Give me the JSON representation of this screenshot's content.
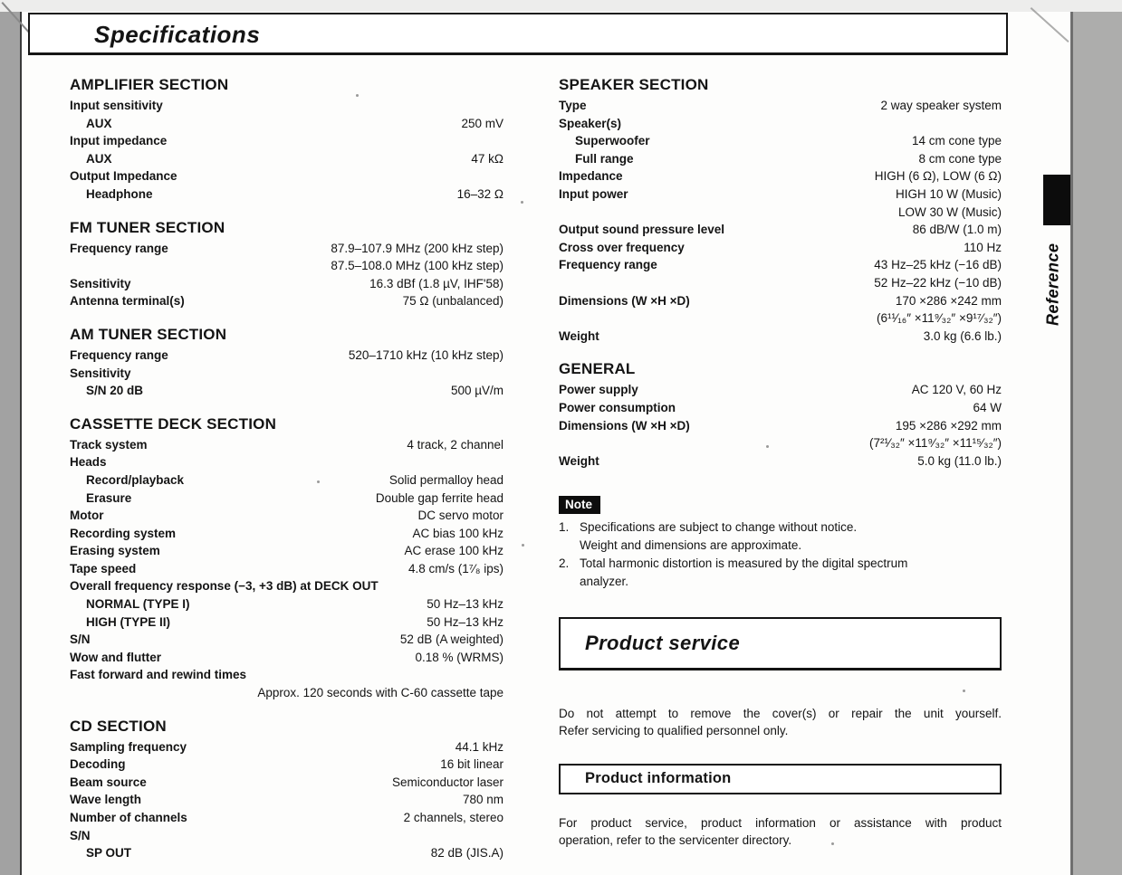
{
  "header": {
    "title": "Specifications"
  },
  "side_tab": {
    "label": "Reference"
  },
  "columns": {
    "left": [
      {
        "heading": "AMPLIFIER SECTION",
        "rows": [
          {
            "label": "Input sensitivity",
            "value": "",
            "indent": 0
          },
          {
            "label": "AUX",
            "value": "250 mV",
            "indent": 1
          },
          {
            "label": "Input impedance",
            "value": "",
            "indent": 0
          },
          {
            "label": "AUX",
            "value": "47 kΩ",
            "indent": 1
          },
          {
            "label": "Output Impedance",
            "value": "",
            "indent": 0
          },
          {
            "label": "Headphone",
            "value": "16–32 Ω",
            "indent": 1
          }
        ]
      },
      {
        "heading": "FM TUNER SECTION",
        "rows": [
          {
            "label": "Frequency range",
            "value": "87.9–107.9 MHz (200 kHz step)",
            "indent": 0
          },
          {
            "label": "",
            "value": "87.5–108.0 MHz (100 kHz step)",
            "indent": 0
          },
          {
            "label": "Sensitivity",
            "value": "16.3 dBf (1.8 µV, IHF'58)",
            "indent": 0
          },
          {
            "label": "Antenna terminal(s)",
            "value": "75 Ω (unbalanced)",
            "indent": 0
          }
        ]
      },
      {
        "heading": "AM TUNER SECTION",
        "rows": [
          {
            "label": "Frequency range",
            "value": "520–1710 kHz (10 kHz step)",
            "indent": 0
          },
          {
            "label": "Sensitivity",
            "value": "",
            "indent": 0
          },
          {
            "label": "S/N 20 dB",
            "value": "500 µV/m",
            "indent": 1
          }
        ]
      },
      {
        "heading": "CASSETTE DECK SECTION",
        "rows": [
          {
            "label": "Track system",
            "value": "4 track, 2 channel",
            "indent": 0
          },
          {
            "label": "Heads",
            "value": "",
            "indent": 0
          },
          {
            "label": "Record/playback",
            "value": "Solid permalloy head",
            "indent": 1
          },
          {
            "label": "Erasure",
            "value": "Double gap ferrite head",
            "indent": 1
          },
          {
            "label": "Motor",
            "value": "DC servo motor",
            "indent": 0
          },
          {
            "label": "Recording system",
            "value": "AC bias 100 kHz",
            "indent": 0
          },
          {
            "label": "Erasing system",
            "value": "AC erase 100 kHz",
            "indent": 0
          },
          {
            "label": "Tape speed",
            "value": "4.8 cm/s (1⁷⁄₈ ips)",
            "indent": 0
          },
          {
            "label": "Overall frequency response (−3, +3 dB) at DECK OUT",
            "value": "",
            "indent": 0
          },
          {
            "label": "NORMAL (TYPE I)",
            "value": "50 Hz–13 kHz",
            "indent": 1
          },
          {
            "label": "HIGH (TYPE II)",
            "value": "50 Hz–13 kHz",
            "indent": 1
          },
          {
            "label": "S/N",
            "value": "52 dB (A weighted)",
            "indent": 0
          },
          {
            "label": "Wow and flutter",
            "value": "0.18 % (WRMS)",
            "indent": 0
          },
          {
            "label": "Fast forward and rewind times",
            "value": "",
            "indent": 0
          },
          {
            "label": "",
            "value": "Approx. 120 seconds with C-60 cassette tape",
            "indent": 0
          }
        ]
      },
      {
        "heading": "CD SECTION",
        "rows": [
          {
            "label": "Sampling frequency",
            "value": "44.1 kHz",
            "indent": 0
          },
          {
            "label": "Decoding",
            "value": "16 bit linear",
            "indent": 0
          },
          {
            "label": "Beam source",
            "value": "Semiconductor laser",
            "indent": 0
          },
          {
            "label": "Wave length",
            "value": "780 nm",
            "indent": 0
          },
          {
            "label": "Number of channels",
            "value": "2 channels, stereo",
            "indent": 0
          },
          {
            "label": "S/N",
            "value": "",
            "indent": 0
          },
          {
            "label": "SP OUT",
            "value": "82 dB (JIS.A)",
            "indent": 1
          }
        ]
      }
    ],
    "right": [
      {
        "heading": "SPEAKER SECTION",
        "rows": [
          {
            "label": "Type",
            "value": "2 way speaker system",
            "indent": 0
          },
          {
            "label": "Speaker(s)",
            "value": "",
            "indent": 0
          },
          {
            "label": "Superwoofer",
            "value": "14 cm cone type",
            "indent": 1
          },
          {
            "label": "Full range",
            "value": "8 cm cone type",
            "indent": 1
          },
          {
            "label": "Impedance",
            "value": "HIGH (6 Ω), LOW (6 Ω)",
            "indent": 0
          },
          {
            "label": "Input power",
            "value": "HIGH 10 W (Music)",
            "indent": 0
          },
          {
            "label": "",
            "value": "LOW 30 W (Music)",
            "indent": 0
          },
          {
            "label": "Output sound pressure level",
            "value": "86 dB/W (1.0 m)",
            "indent": 0
          },
          {
            "label": "Cross over frequency",
            "value": "110 Hz",
            "indent": 0
          },
          {
            "label": "Frequency range",
            "value": "43 Hz–25 kHz (−16 dB)",
            "indent": 0
          },
          {
            "label": "",
            "value": "52 Hz–22 kHz (−10 dB)",
            "indent": 0
          },
          {
            "label": "Dimensions (W ×H ×D)",
            "value": "170 ×286 ×242 mm",
            "indent": 0
          },
          {
            "label": "",
            "value": "(6¹¹⁄₁₆″ ×11⁹⁄₃₂″ ×9¹⁷⁄₃₂″)",
            "indent": 0
          },
          {
            "label": "Weight",
            "value": "3.0 kg (6.6 lb.)",
            "indent": 0
          }
        ]
      },
      {
        "heading": "GENERAL",
        "rows": [
          {
            "label": "Power supply",
            "value": "AC 120 V, 60 Hz",
            "indent": 0
          },
          {
            "label": "Power consumption",
            "value": "64 W",
            "indent": 0
          },
          {
            "label": "Dimensions (W ×H ×D)",
            "value": "195 ×286 ×292 mm",
            "indent": 0
          },
          {
            "label": "",
            "value": "(7²¹⁄₃₂″ ×11⁹⁄₃₂″ ×11¹⁵⁄₃₂″)",
            "indent": 0
          },
          {
            "label": "Weight",
            "value": "5.0 kg (11.0 lb.)",
            "indent": 0
          }
        ]
      }
    ]
  },
  "note": {
    "badge": "Note",
    "items": [
      {
        "num": "1.",
        "lines": [
          "Specifications are subject to change without notice.",
          "Weight and dimensions are approximate."
        ]
      },
      {
        "num": "2.",
        "lines": [
          "Total harmonic distortion is measured by the digital spectrum",
          "analyzer."
        ]
      }
    ]
  },
  "product_service": {
    "title": "Product service",
    "lines": [
      "Do not attempt to remove the cover(s) or repair the unit yourself.",
      "Refer servicing to qualified personnel only."
    ]
  },
  "product_information": {
    "title": "Product information",
    "lines": [
      "For product service, product information or assistance with product",
      "operation, refer to the servicenter directory."
    ]
  }
}
